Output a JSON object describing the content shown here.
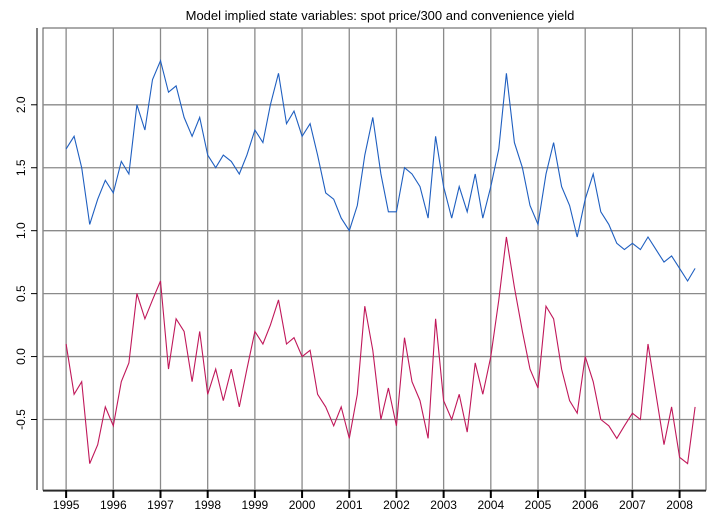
{
  "chart_data": {
    "type": "line",
    "title": "Model implied state variables: spot price/300 and convenience yield",
    "x": [
      1995,
      1995.17,
      1995.33,
      1995.5,
      1995.67,
      1995.83,
      1996,
      1996.17,
      1996.33,
      1996.5,
      1996.67,
      1996.83,
      1997,
      1997.17,
      1997.33,
      1997.5,
      1997.67,
      1997.83,
      1998,
      1998.17,
      1998.33,
      1998.5,
      1998.67,
      1998.83,
      1999,
      1999.17,
      1999.33,
      1999.5,
      1999.67,
      1999.83,
      2000,
      2000.17,
      2000.33,
      2000.5,
      2000.67,
      2000.83,
      2001,
      2001.17,
      2001.33,
      2001.5,
      2001.67,
      2001.83,
      2002,
      2002.17,
      2002.33,
      2002.5,
      2002.67,
      2002.83,
      2003,
      2003.17,
      2003.33,
      2003.5,
      2003.67,
      2003.83,
      2004,
      2004.17,
      2004.33,
      2004.5,
      2004.67,
      2004.83,
      2005,
      2005.17,
      2005.33,
      2005.5,
      2005.67,
      2005.83,
      2006,
      2006.17,
      2006.33,
      2006.5,
      2006.67,
      2006.83,
      2007,
      2007.17,
      2007.33,
      2007.5,
      2007.67,
      2007.83,
      2008,
      2008.17,
      2008.33
    ],
    "series": [
      {
        "color": "#1f5fc0",
        "values": [
          1.65,
          1.75,
          1.5,
          1.05,
          1.25,
          1.4,
          1.3,
          1.55,
          1.45,
          2.0,
          1.8,
          2.2,
          2.35,
          2.1,
          2.15,
          1.9,
          1.75,
          1.9,
          1.6,
          1.5,
          1.6,
          1.55,
          1.45,
          1.6,
          1.8,
          1.7,
          2.0,
          2.25,
          1.85,
          1.95,
          1.75,
          1.85,
          1.6,
          1.3,
          1.25,
          1.1,
          1.0,
          1.2,
          1.6,
          1.9,
          1.45,
          1.15,
          1.15,
          1.5,
          1.45,
          1.35,
          1.1,
          1.75,
          1.35,
          1.1,
          1.35,
          1.15,
          1.45,
          1.1,
          1.35,
          1.65,
          2.25,
          1.7,
          1.5,
          1.2,
          1.05,
          1.45,
          1.7,
          1.35,
          1.2,
          0.95,
          1.25,
          1.45,
          1.15,
          1.05,
          0.9,
          0.85,
          0.9,
          0.85,
          0.95,
          0.85,
          0.75,
          0.8,
          0.7,
          0.6,
          0.7
        ]
      },
      {
        "color": "#c0185a",
        "values": [
          0.1,
          -0.3,
          -0.2,
          -0.85,
          -0.7,
          -0.4,
          -0.55,
          -0.2,
          -0.05,
          0.5,
          0.3,
          0.45,
          0.6,
          -0.1,
          0.3,
          0.2,
          -0.2,
          0.2,
          -0.3,
          -0.1,
          -0.35,
          -0.1,
          -0.4,
          -0.1,
          0.2,
          0.1,
          0.25,
          0.45,
          0.1,
          0.15,
          0.0,
          0.05,
          -0.3,
          -0.4,
          -0.55,
          -0.4,
          -0.65,
          -0.3,
          0.4,
          0.05,
          -0.5,
          -0.25,
          -0.55,
          0.15,
          -0.2,
          -0.35,
          -0.65,
          0.3,
          -0.35,
          -0.5,
          -0.3,
          -0.6,
          -0.05,
          -0.3,
          0.0,
          0.45,
          0.95,
          0.55,
          0.2,
          -0.1,
          -0.25,
          0.4,
          0.3,
          -0.1,
          -0.35,
          -0.45,
          0.0,
          -0.2,
          -0.5,
          -0.55,
          -0.65,
          -0.55,
          -0.45,
          -0.5,
          0.1,
          -0.3,
          -0.7,
          -0.4,
          -0.8,
          -0.85,
          -0.4
        ]
      }
    ],
    "xlim": [
      1994.51,
      2008.56
    ],
    "xticks": [
      1995,
      1996,
      1997,
      1998,
      1999,
      2000,
      2001,
      2002,
      2003,
      2004,
      2005,
      2006,
      2007,
      2008
    ],
    "ylim": [
      -1.06,
      2.61
    ],
    "yticks": [
      {
        "value": -0.5,
        "label": "-0.5"
      },
      {
        "value": 0,
        "label": "0.0"
      },
      {
        "value": 0.5,
        "label": "0.5"
      },
      {
        "value": 1,
        "label": "1.0"
      },
      {
        "value": 1.5,
        "label": "1.5"
      },
      {
        "value": 2,
        "label": "2.0"
      }
    ],
    "grid": true
  }
}
